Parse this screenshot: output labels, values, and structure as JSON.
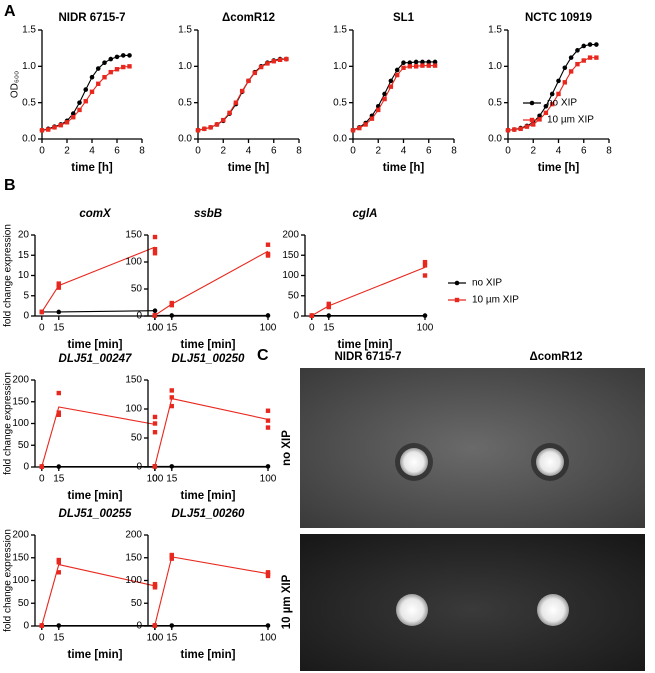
{
  "panel_labels": [
    "A",
    "B",
    "C"
  ],
  "chart_data": [
    {
      "type": "line",
      "title": "NIDR 6715-7",
      "xlabel": "time [h]",
      "ylabel": "OD₆₀₀",
      "x": [
        0,
        0.5,
        1,
        1.5,
        2,
        2.5,
        3,
        3.5,
        4,
        4.5,
        5,
        5.5,
        6,
        6.5,
        7
      ],
      "xlim": [
        0,
        8
      ],
      "xticks": [
        0,
        2,
        4,
        6,
        8
      ],
      "ylim": [
        0,
        1.5
      ],
      "yticks": [
        {
          "value": 0,
          "label": "0.0"
        },
        {
          "value": 0.5,
          "label": "0.5"
        },
        {
          "value": 1,
          "label": "1.0"
        },
        {
          "value": 1.5,
          "label": "1.5"
        }
      ],
      "series": [
        {
          "color": "#000000",
          "values": [
            0.12,
            0.14,
            0.17,
            0.2,
            0.25,
            0.35,
            0.5,
            0.68,
            0.85,
            0.97,
            1.05,
            1.1,
            1.13,
            1.15,
            1.15
          ]
        },
        {
          "color": "#e8281e",
          "values": [
            0.12,
            0.13,
            0.16,
            0.19,
            0.23,
            0.3,
            0.4,
            0.52,
            0.65,
            0.76,
            0.85,
            0.92,
            0.96,
            0.99,
            1.0
          ]
        }
      ]
    },
    {
      "type": "line",
      "title": "ΔcomR12",
      "xlabel": "time [h]",
      "x": [
        0,
        0.5,
        1,
        1.5,
        2,
        2.5,
        3,
        3.5,
        4,
        4.5,
        5,
        5.5,
        6,
        6.5,
        7
      ],
      "xlim": [
        0,
        8
      ],
      "xticks": [
        0,
        2,
        4,
        6,
        8
      ],
      "ylim": [
        0,
        1.5
      ],
      "yticks": [
        {
          "value": 0,
          "label": "0.0"
        },
        {
          "value": 0.5,
          "label": "0.5"
        },
        {
          "value": 1,
          "label": "1.0"
        },
        {
          "value": 1.5,
          "label": "1.5"
        }
      ],
      "series": [
        {
          "color": "#000000",
          "values": [
            0.12,
            0.14,
            0.16,
            0.2,
            0.25,
            0.35,
            0.48,
            0.65,
            0.8,
            0.92,
            1.0,
            1.05,
            1.08,
            1.1,
            1.1
          ]
        },
        {
          "color": "#e8281e",
          "values": [
            0.12,
            0.14,
            0.16,
            0.2,
            0.26,
            0.36,
            0.5,
            0.66,
            0.8,
            0.91,
            0.99,
            1.04,
            1.07,
            1.09,
            1.1
          ]
        }
      ]
    },
    {
      "type": "line",
      "title": "SL1",
      "xlabel": "time [h]",
      "x": [
        0,
        0.5,
        1,
        1.5,
        2,
        2.5,
        3,
        3.5,
        4,
        4.5,
        5,
        5.5,
        6,
        6.5
      ],
      "xlim": [
        0,
        8
      ],
      "xticks": [
        0,
        2,
        4,
        6,
        8
      ],
      "ylim": [
        0,
        1.5
      ],
      "yticks": [
        {
          "value": 0,
          "label": "0.0"
        },
        {
          "value": 0.5,
          "label": "0.5"
        },
        {
          "value": 1,
          "label": "1.0"
        },
        {
          "value": 1.5,
          "label": "1.5"
        }
      ],
      "series": [
        {
          "color": "#000000",
          "values": [
            0.12,
            0.16,
            0.22,
            0.32,
            0.45,
            0.62,
            0.8,
            0.95,
            1.05,
            1.05,
            1.06,
            1.06,
            1.06,
            1.06
          ]
        },
        {
          "color": "#e8281e",
          "values": [
            0.12,
            0.15,
            0.2,
            0.28,
            0.4,
            0.55,
            0.72,
            0.88,
            0.98,
            1.0,
            1.0,
            1.01,
            1.01,
            1.01
          ]
        }
      ]
    },
    {
      "type": "line",
      "title": "NCTC 10919",
      "xlabel": "time [h]",
      "x": [
        0,
        0.5,
        1,
        1.5,
        2,
        2.5,
        3,
        3.5,
        4,
        4.5,
        5,
        5.5,
        6,
        6.5,
        7
      ],
      "xlim": [
        0,
        8
      ],
      "xticks": [
        0,
        2,
        4,
        6,
        8
      ],
      "ylim": [
        0,
        1.5
      ],
      "yticks": [
        {
          "value": 0,
          "label": "0.0"
        },
        {
          "value": 0.5,
          "label": "0.5"
        },
        {
          "value": 1,
          "label": "1.0"
        },
        {
          "value": 1.5,
          "label": "1.5"
        }
      ],
      "series": [
        {
          "name": "no XIP",
          "color": "#000000",
          "values": [
            0.12,
            0.13,
            0.15,
            0.18,
            0.23,
            0.32,
            0.45,
            0.62,
            0.8,
            0.98,
            1.12,
            1.22,
            1.28,
            1.3,
            1.3
          ]
        },
        {
          "name": "10 µm XIP",
          "color": "#e8281e",
          "values": [
            0.12,
            0.13,
            0.14,
            0.17,
            0.2,
            0.27,
            0.36,
            0.48,
            0.62,
            0.78,
            0.93,
            1.03,
            1.08,
            1.12,
            1.12
          ]
        }
      ]
    },
    {
      "type": "line",
      "title": "comX",
      "xlabel": "time [min]",
      "ylabel": "fold change expression",
      "x": [
        0,
        15,
        100
      ],
      "xlim": [
        -6,
        100
      ],
      "xticks": [
        0,
        15,
        100
      ],
      "ylim": [
        0,
        20
      ],
      "yticks": [
        0,
        5,
        10,
        15,
        20
      ],
      "series": [
        {
          "color": "#000000",
          "values": [
            1,
            1,
            1.3
          ]
        },
        {
          "color": "#e8281e",
          "values": [
            1,
            7.5,
            17
          ],
          "replicates": [
            [
              1,
              1,
              1
            ],
            [
              7,
              7.5,
              8
            ],
            [
              15.5,
              16.5,
              19.5
            ]
          ]
        }
      ]
    },
    {
      "type": "line",
      "title": "ssbB",
      "xlabel": "time [min]",
      "x": [
        0,
        15,
        100
      ],
      "xlim": [
        -6,
        100
      ],
      "xticks": [
        0,
        15,
        100
      ],
      "ylim": [
        0,
        150
      ],
      "yticks": [
        0,
        50,
        100,
        150
      ],
      "series": [
        {
          "color": "#000000",
          "values": [
            1,
            1,
            1
          ]
        },
        {
          "color": "#e8281e",
          "values": [
            1,
            22,
            120
          ],
          "replicates": [
            [
              1,
              1,
              1
            ],
            [
              20,
              22,
              24
            ],
            [
              112,
              115,
              132
            ]
          ]
        }
      ]
    },
    {
      "type": "line",
      "title": "cglA",
      "xlabel": "time [min]",
      "x": [
        0,
        15,
        100
      ],
      "xlim": [
        -6,
        100
      ],
      "xticks": [
        0,
        15,
        100
      ],
      "ylim": [
        0,
        200
      ],
      "yticks": [
        0,
        50,
        100,
        150,
        200
      ],
      "series": [
        {
          "name": "no XIP",
          "color": "#000000",
          "values": [
            1,
            1,
            1
          ]
        },
        {
          "name": "10 µm XIP",
          "color": "#e8281e",
          "values": [
            1,
            25,
            120
          ],
          "replicates": [
            [
              1,
              1,
              1
            ],
            [
              22,
              25,
              30
            ],
            [
              100,
              125,
              133
            ]
          ]
        }
      ]
    },
    {
      "type": "line",
      "title": "DLJ51_00247",
      "xlabel": "time [min]",
      "ylabel": "fold change expression",
      "x": [
        0,
        15,
        100
      ],
      "xlim": [
        -6,
        100
      ],
      "xticks": [
        0,
        15,
        100
      ],
      "ylim": [
        0,
        200
      ],
      "yticks": [
        0,
        50,
        100,
        150,
        200
      ],
      "series": [
        {
          "color": "#000000",
          "values": [
            1,
            1,
            1
          ]
        },
        {
          "color": "#e8281e",
          "values": [
            1,
            138,
            98
          ],
          "replicates": [
            [
              1,
              1,
              1
            ],
            [
              120,
              125,
              170
            ],
            [
              80,
              100,
              115
            ]
          ]
        }
      ]
    },
    {
      "type": "line",
      "title": "DLJ51_00250",
      "xlabel": "time [min]",
      "x": [
        0,
        15,
        100
      ],
      "xlim": [
        -6,
        100
      ],
      "xticks": [
        0,
        15,
        100
      ],
      "ylim": [
        0,
        150
      ],
      "yticks": [
        0,
        50,
        100,
        150
      ],
      "series": [
        {
          "color": "#000000",
          "values": [
            1,
            1,
            1
          ]
        },
        {
          "color": "#e8281e",
          "values": [
            1,
            118,
            82
          ],
          "replicates": [
            [
              1,
              1,
              1
            ],
            [
              105,
              120,
              132
            ],
            [
              68,
              80,
              97
            ]
          ]
        }
      ]
    },
    {
      "type": "line",
      "title": "DLJ51_00255",
      "xlabel": "time [min]",
      "ylabel": "fold change expression",
      "x": [
        0,
        15,
        100
      ],
      "xlim": [
        -6,
        100
      ],
      "xticks": [
        0,
        15,
        100
      ],
      "ylim": [
        0,
        200
      ],
      "yticks": [
        0,
        50,
        100,
        150,
        200
      ],
      "series": [
        {
          "color": "#000000",
          "values": [
            1,
            1,
            1
          ]
        },
        {
          "color": "#e8281e",
          "values": [
            1,
            135,
            88
          ],
          "replicates": [
            [
              1,
              1,
              1
            ],
            [
              118,
              140,
              145
            ],
            [
              85,
              88,
              92
            ]
          ]
        }
      ]
    },
    {
      "type": "line",
      "title": "DLJ51_00260",
      "xlabel": "time [min]",
      "x": [
        0,
        15,
        100
      ],
      "xlim": [
        -6,
        100
      ],
      "xticks": [
        0,
        15,
        100
      ],
      "ylim": [
        0,
        200
      ],
      "yticks": [
        0,
        50,
        100,
        150,
        200
      ],
      "series": [
        {
          "color": "#000000",
          "values": [
            1,
            1,
            1
          ]
        },
        {
          "color": "#e8281e",
          "values": [
            1,
            152,
            115
          ],
          "replicates": [
            [
              1,
              1,
              1
            ],
            [
              148,
              152,
              156
            ],
            [
              110,
              115,
              118
            ]
          ]
        }
      ]
    }
  ],
  "panel_c": {
    "columns": [
      "NIDR 6715-7",
      "ΔcomR12"
    ],
    "rows": [
      "no XIP",
      "10 µm XIP"
    ]
  }
}
